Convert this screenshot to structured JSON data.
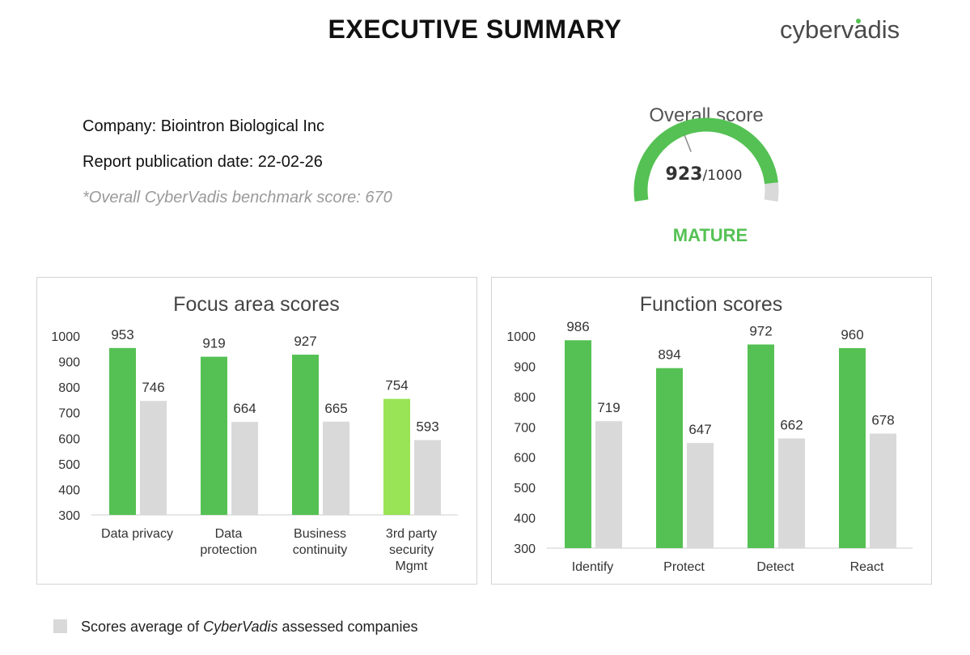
{
  "header": {
    "title": "EXECUTIVE SUMMARY",
    "logo_text": "cybervadis"
  },
  "info": {
    "company": "Company: Biointron Biological Inc",
    "publication_date": "Report publication date: 22-02-26",
    "benchmark": "*Overall CyberVadis benchmark score: 670"
  },
  "overall": {
    "label": "Overall score",
    "score": 923,
    "score_text": "923",
    "max_text": "/1000",
    "max": 1000,
    "level": "MATURE"
  },
  "colors": {
    "green": "#55c154",
    "light_green": "#99e356",
    "grey": "#d9d9d9",
    "gauge_grey": "#d9d9d9"
  },
  "legend": {
    "before": "Scores average of ",
    "brand": "CyberVadis",
    "after": " assessed companies"
  },
  "chart_data": [
    {
      "type": "bar",
      "title": "Focus area scores",
      "categories": [
        [
          "Data privacy"
        ],
        [
          "Data",
          "protection"
        ],
        [
          "Business",
          "continuity"
        ],
        [
          "3rd party",
          "security",
          "Mgmt"
        ]
      ],
      "series": [
        {
          "name": "Company score",
          "values": [
            953,
            919,
            927,
            754
          ],
          "highlight_index": 3
        },
        {
          "name": "Scores average of CyberVadis assessed companies",
          "values": [
            746,
            664,
            665,
            593
          ]
        }
      ],
      "ylim": [
        300,
        1000
      ],
      "yticks": [
        300,
        400,
        500,
        600,
        700,
        800,
        900,
        1000
      ],
      "xlabel": "",
      "ylabel": ""
    },
    {
      "type": "bar",
      "title": "Function scores",
      "categories": [
        [
          "Identify"
        ],
        [
          "Protect"
        ],
        [
          "Detect"
        ],
        [
          "React"
        ]
      ],
      "series": [
        {
          "name": "Company score",
          "values": [
            986,
            894,
            972,
            960
          ]
        },
        {
          "name": "Scores average of CyberVadis assessed companies",
          "values": [
            719,
            647,
            662,
            678
          ]
        }
      ],
      "ylim": [
        300,
        1000
      ],
      "yticks": [
        300,
        400,
        500,
        600,
        700,
        800,
        900,
        1000
      ],
      "xlabel": "",
      "ylabel": ""
    }
  ]
}
